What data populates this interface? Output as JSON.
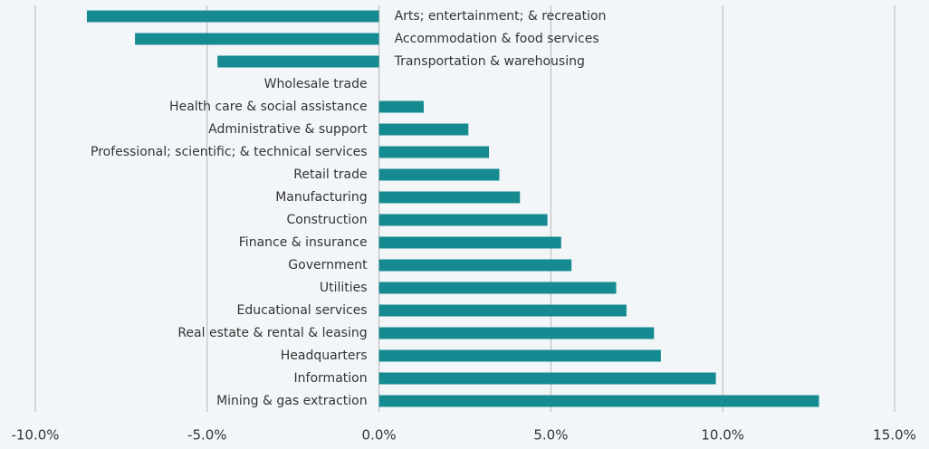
{
  "chart_data": {
    "type": "hbar",
    "categories": [
      "Arts; entertainment; & recreation",
      "Accommodation & food services",
      "Transportation & warehousing",
      "Wholesale trade",
      "Health care & social assistance",
      "Administrative & support",
      "Professional; scientific; & technical services",
      "Retail trade",
      "Manufacturing",
      "Construction",
      "Finance & insurance",
      "Government",
      "Utilities",
      "Educational services",
      "Real estate & rental & leasing",
      "Headquarters",
      "Information",
      "Mining & gas extraction"
    ],
    "values": [
      -8.5,
      -7.1,
      -4.7,
      0,
      1.3,
      2.6,
      3.2,
      3.5,
      4.1,
      4.9,
      5.3,
      5.6,
      6.9,
      7.2,
      8.0,
      8.2,
      9.8,
      12.8
    ],
    "color": "#168a91",
    "xlim": [
      -10,
      15
    ],
    "xticks": [
      {
        "value": -10,
        "label": "-10.0%"
      },
      {
        "value": -5,
        "label": "-5.0%"
      },
      {
        "value": 0,
        "label": "0.0%"
      },
      {
        "value": 5,
        "label": "5.0%"
      },
      {
        "value": 10,
        "label": "10.0%"
      },
      {
        "value": 15,
        "label": "15.0%"
      }
    ],
    "grid": true
  }
}
